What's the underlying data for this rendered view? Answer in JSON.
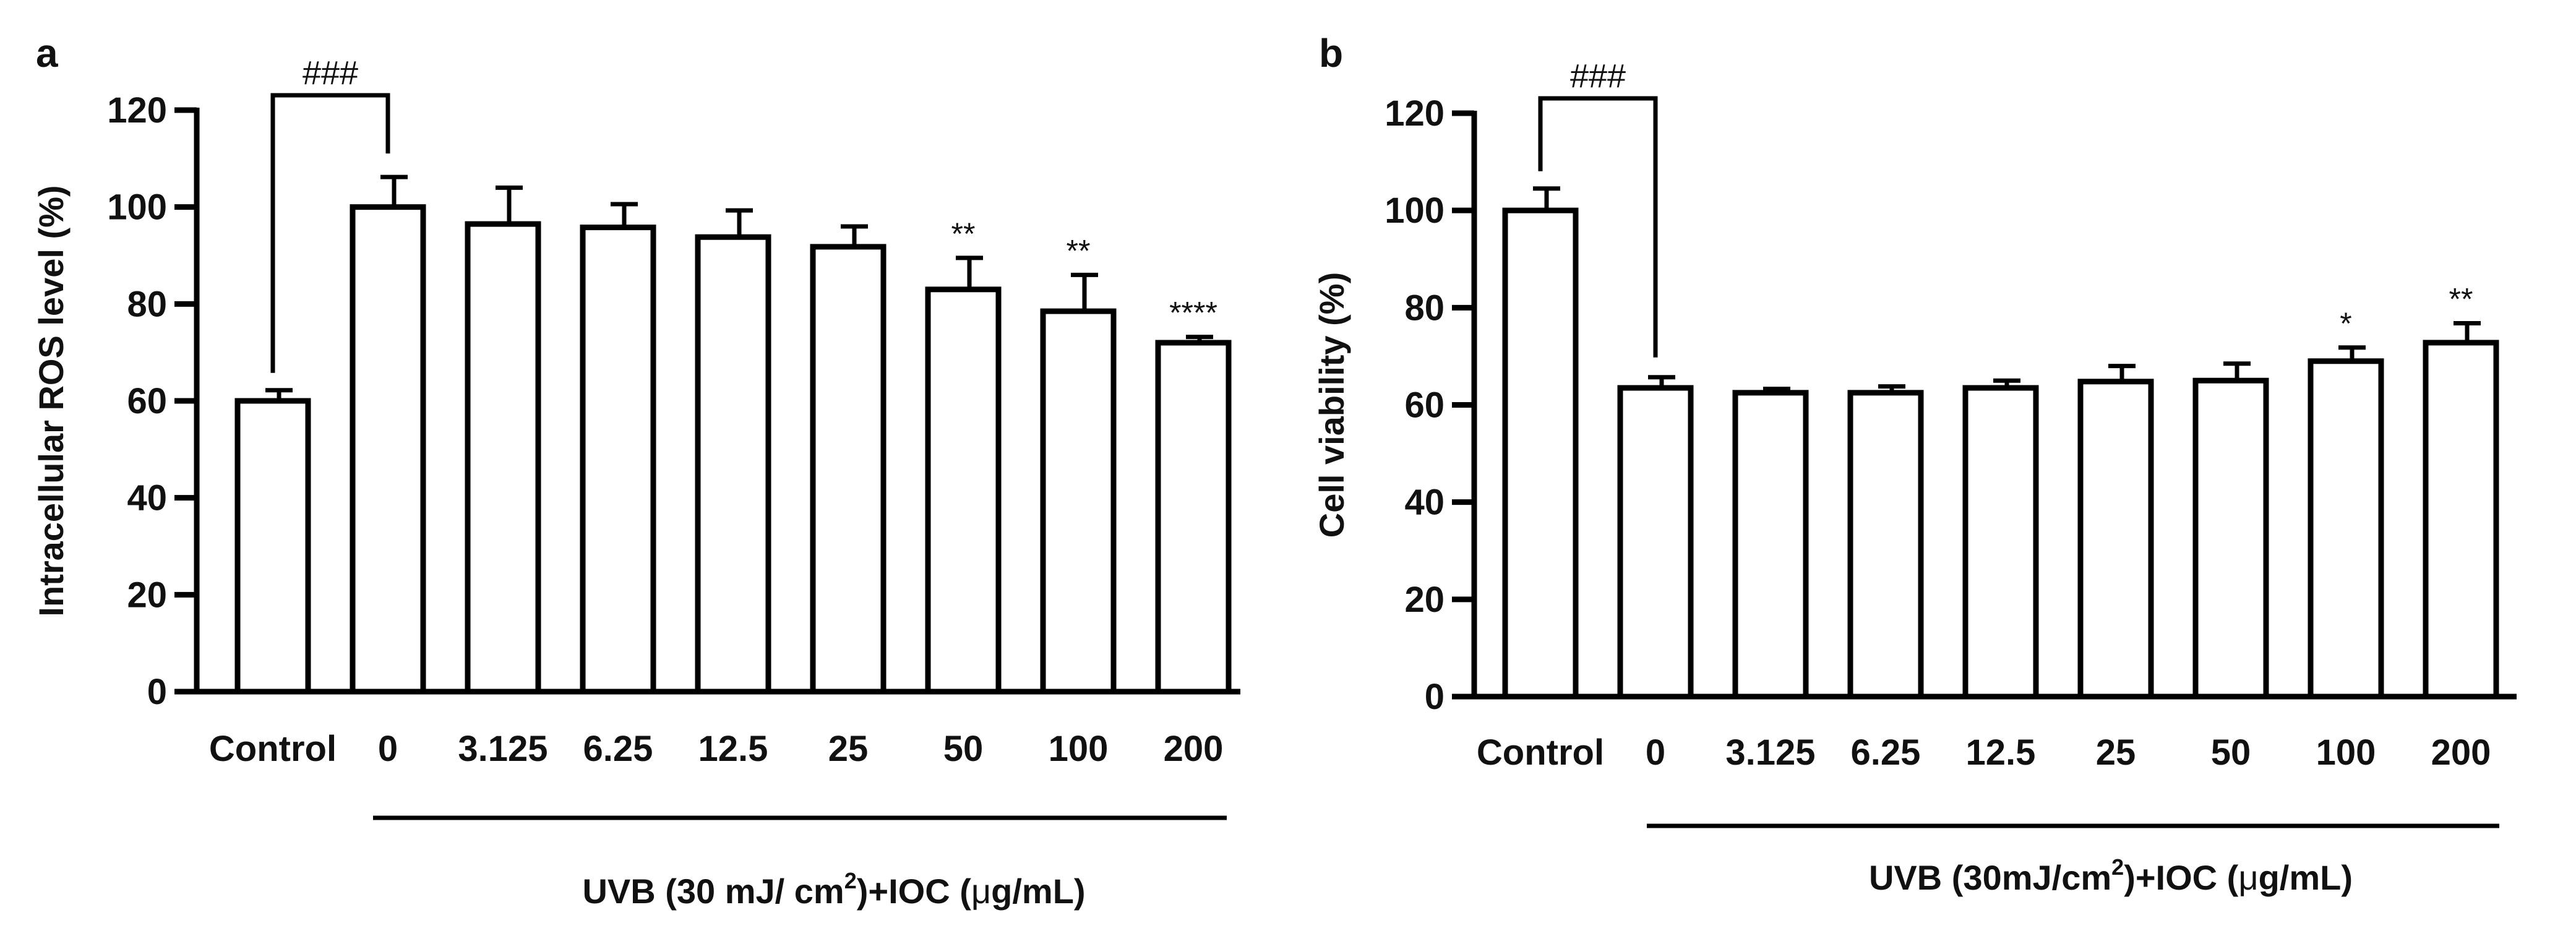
{
  "chart_data": [
    {
      "type": "bar",
      "panel": "a",
      "categories": [
        "Control",
        "0",
        "3.125",
        "6.25",
        "12.5",
        "25",
        "50",
        "100",
        "200"
      ],
      "values": [
        60,
        100,
        96.5,
        95.8,
        93.8,
        91.8,
        83,
        78.5,
        72
      ],
      "errors": [
        2.2,
        6.2,
        7.5,
        4.8,
        5.5,
        4.2,
        6.5,
        7.5,
        1.2
      ],
      "significance": [
        "",
        "",
        "",
        "",
        "",
        "",
        "**",
        "**",
        "****"
      ],
      "bracket": {
        "label": "###",
        "from": 0,
        "to": 1
      },
      "ylabel": "Intracellular ROS level (%)",
      "ylim": [
        0,
        120
      ],
      "yticks": [
        "0",
        "20",
        "40",
        "60",
        "80",
        "100",
        "120"
      ],
      "group_label": {
        "text": "UVB (30 mJ/ cm",
        "sup": "2",
        "rest": ")+IOC (",
        "mu": "μ",
        "unit": "g/mL)"
      },
      "group_from": 1,
      "group_to": 8
    },
    {
      "type": "bar",
      "panel": "b",
      "categories": [
        "Control",
        "0",
        "3.125",
        "6.25",
        "12.5",
        "25",
        "50",
        "100",
        "200"
      ],
      "values": [
        100,
        63.5,
        62.5,
        62.5,
        63.5,
        64.8,
        65,
        69,
        72.8
      ],
      "errors": [
        4.5,
        2.2,
        0.8,
        1.3,
        1.5,
        3.2,
        3.5,
        2.8,
        4
      ],
      "significance": [
        "",
        "",
        "",
        "",
        "",
        "",
        "",
        "*",
        "**"
      ],
      "bracket": {
        "label": "###",
        "from": 0,
        "to": 1
      },
      "ylabel": "Cell viability (%)",
      "ylim": [
        0,
        120
      ],
      "yticks": [
        "0",
        "20",
        "40",
        "60",
        "80",
        "100",
        "120"
      ],
      "group_label": {
        "text": "UVB (30mJ/cm",
        "sup": "2",
        "rest": ")+IOC (",
        "mu": "μ",
        "unit": "g/mL)"
      },
      "group_from": 1,
      "group_to": 8
    }
  ]
}
